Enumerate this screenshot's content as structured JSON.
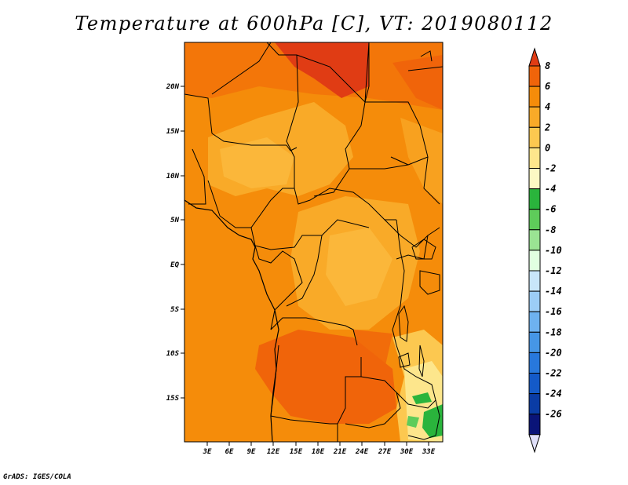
{
  "title": "Temperature at 600hPa [C], VT: 2019080112",
  "credit": "GrADS: IGES/COLA",
  "map": {
    "variable": "Temperature",
    "level": "600hPa",
    "units": "C",
    "valid_time": "2019080112",
    "lat_labels": [
      "20N",
      "15N",
      "10N",
      "5N",
      "EQ",
      "5S",
      "10S",
      "15S"
    ],
    "lon_labels": [
      "3E",
      "6E",
      "9E",
      "12E",
      "15E",
      "18E",
      "21E",
      "24E",
      "27E",
      "30E",
      "33E"
    ]
  },
  "colorbar": {
    "labels": [
      "8",
      "6",
      "4",
      "2",
      "0",
      "-2",
      "-4",
      "-6",
      "-8",
      "-10",
      "-12",
      "-14",
      "-16",
      "-18",
      "-20",
      "-22",
      "-24",
      "-26"
    ],
    "colors": [
      "#e03c14",
      "#f0640a",
      "#f58c0a",
      "#f9aa28",
      "#fcc850",
      "#fde68c",
      "#fcf9c4",
      "#2ab43c",
      "#5ecc5a",
      "#9ae493",
      "#e1ffe1",
      "#c8e6fa",
      "#9ccdf6",
      "#6eb2f0",
      "#4696e6",
      "#2878dc",
      "#145ac8",
      "#0a3ca5",
      "#0a1478",
      "#e0e0fa"
    ]
  }
}
